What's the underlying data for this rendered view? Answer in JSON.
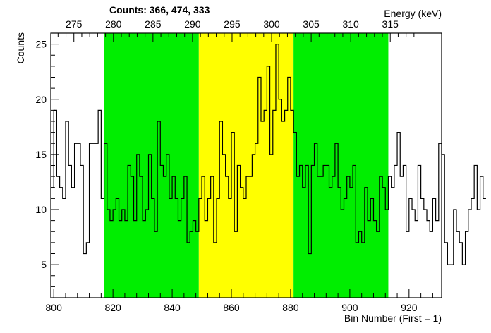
{
  "chart_data": {
    "type": "histogram",
    "title": "Counts:   366,   474,   333",
    "xlabel": "Bin Number (First = 1)",
    "ylabel": "Counts",
    "x2label": "Energy (keV)",
    "x_range": [
      799,
      931
    ],
    "ylim": [
      2,
      26
    ],
    "x_ticks": [
      800,
      820,
      840,
      860,
      880,
      900,
      920
    ],
    "y_ticks": [
      5,
      10,
      15,
      20,
      25
    ],
    "energy_ticks": [
      275,
      280,
      285,
      290,
      295,
      300,
      305,
      310,
      315
    ],
    "energy_calibration": {
      "bin_at_275": 806.8,
      "bin_at_310": 900.3
    },
    "regions": [
      {
        "name": "left background",
        "x_start": 817,
        "x_end": 849,
        "color": "#00ee00"
      },
      {
        "name": "peak",
        "x_start": 849,
        "x_end": 881,
        "color": "#ffff00"
      },
      {
        "name": "right background",
        "x_start": 881,
        "x_end": 913,
        "color": "#00ee00"
      }
    ],
    "bin_start": 799,
    "bin_width": 1,
    "counts": [
      12,
      19,
      13,
      12,
      11,
      18,
      14,
      12,
      16,
      16,
      14,
      6,
      7,
      16,
      16,
      16,
      19,
      11,
      16,
      10,
      9,
      10,
      11,
      9,
      10,
      9,
      14,
      13,
      9,
      15,
      13,
      9,
      10,
      15,
      11,
      8,
      18,
      14,
      13,
      15,
      11,
      13,
      11,
      9,
      11,
      13,
      7,
      8,
      9,
      8,
      11,
      13,
      9,
      11,
      13,
      7,
      11,
      18,
      15,
      13,
      11,
      17,
      8,
      14,
      12,
      11,
      13,
      13,
      15,
      16,
      22,
      18,
      19,
      23,
      15,
      19,
      25,
      20,
      18,
      19,
      22,
      19,
      17,
      13,
      14,
      12,
      14,
      6,
      14,
      16,
      13,
      13,
      14,
      14,
      12,
      13,
      16,
      12,
      10,
      11,
      13,
      12,
      14,
      7,
      8,
      7,
      12,
      9,
      11,
      9,
      8,
      13,
      12,
      10,
      13,
      12,
      14,
      17,
      13,
      14,
      8,
      11,
      10,
      9,
      14,
      11,
      10,
      9,
      8,
      11,
      9,
      16,
      15,
      7,
      5,
      5,
      10,
      8,
      7,
      5,
      8,
      10,
      11,
      14,
      10,
      13,
      11
    ]
  }
}
